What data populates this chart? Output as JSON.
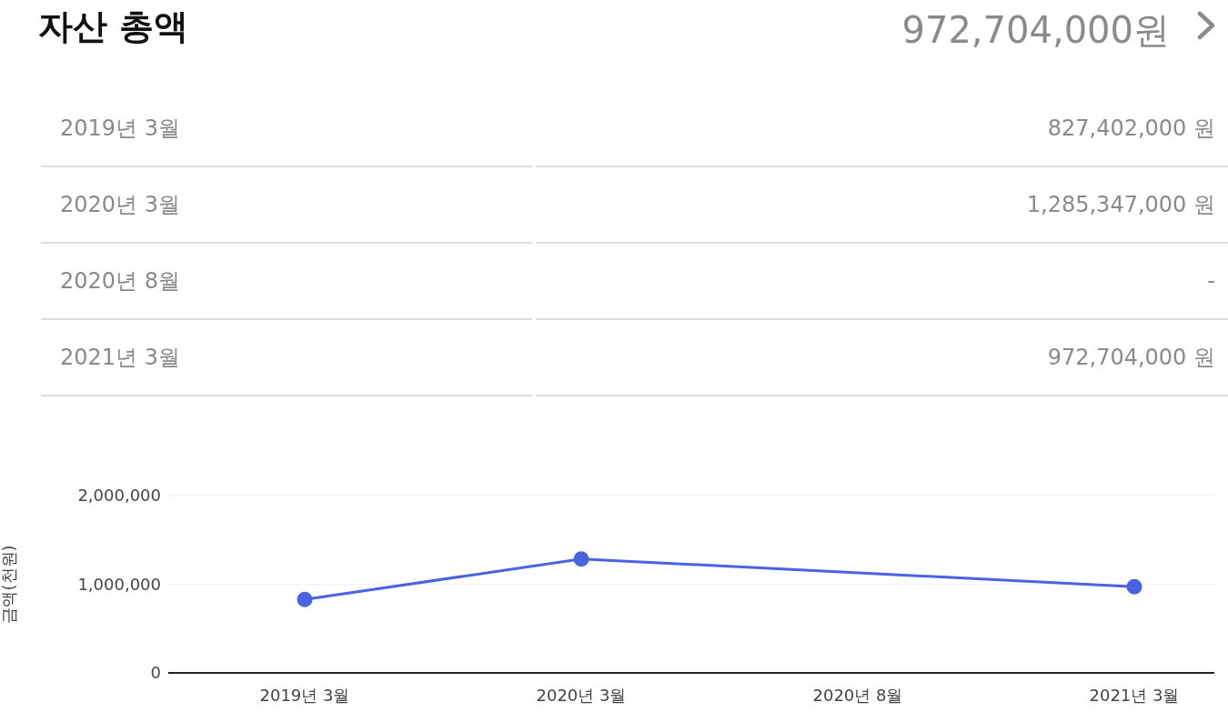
{
  "chart_data": {
    "type": "line",
    "title": "자산 총액",
    "subtitle": "972,704,000원",
    "ylabel": "금액(천원)",
    "categories": [
      "2019년 3월",
      "2020년 3월",
      "2020년 8월",
      "2021년 3월"
    ],
    "series": [
      {
        "color": "#4a63e0",
        "values": [
          827402,
          1285347,
          null,
          972704
        ]
      }
    ],
    "annotations": [
      "827,402,000 원",
      "1,285,347,000 원",
      "-",
      "972,704,000 원"
    ],
    "ylim": [
      0,
      2000000
    ],
    "yticks": [
      {
        "value": 0,
        "label": "0"
      },
      {
        "value": 1000000,
        "label": "1,000,000"
      },
      {
        "value": 2000000,
        "label": "2,000,000"
      }
    ],
    "grid": "y",
    "marker": "circle",
    "line_style": "solid",
    "legend": false
  }
}
